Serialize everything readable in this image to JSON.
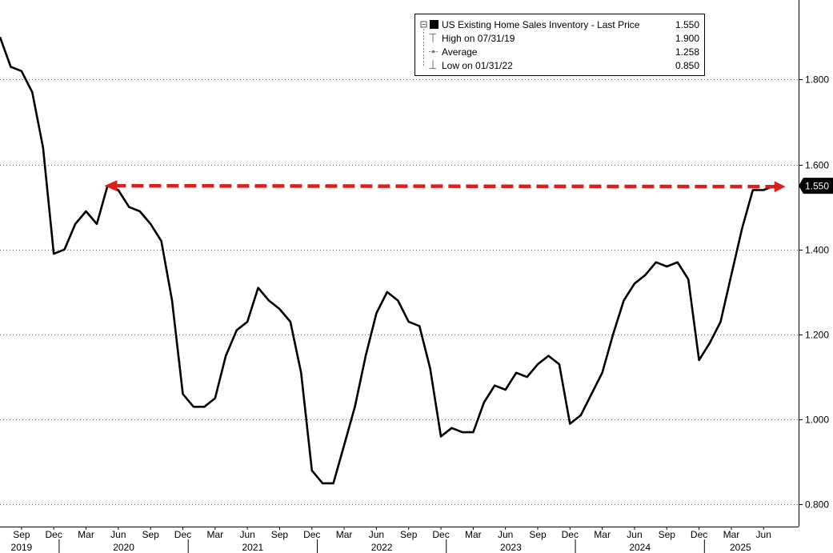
{
  "chart_data": {
    "type": "line",
    "series": [
      {
        "name": "US Existing Home Sales Inventory",
        "x": [
          "2019-07",
          "2019-08",
          "2019-09",
          "2019-10",
          "2019-11",
          "2019-12",
          "2020-01",
          "2020-02",
          "2020-03",
          "2020-04",
          "2020-05",
          "2020-06",
          "2020-07",
          "2020-08",
          "2020-09",
          "2020-10",
          "2020-11",
          "2020-12",
          "2021-01",
          "2021-02",
          "2021-03",
          "2021-04",
          "2021-05",
          "2021-06",
          "2021-07",
          "2021-08",
          "2021-09",
          "2021-10",
          "2021-11",
          "2021-12",
          "2022-01",
          "2022-02",
          "2022-03",
          "2022-04",
          "2022-05",
          "2022-06",
          "2022-07",
          "2022-08",
          "2022-09",
          "2022-10",
          "2022-11",
          "2022-12",
          "2023-01",
          "2023-02",
          "2023-03",
          "2023-04",
          "2023-05",
          "2023-06",
          "2023-07",
          "2023-08",
          "2023-09",
          "2023-10",
          "2023-11",
          "2023-12",
          "2024-01",
          "2024-02",
          "2024-03",
          "2024-04",
          "2024-05",
          "2024-06",
          "2024-07",
          "2024-08",
          "2024-09",
          "2024-10",
          "2024-11",
          "2024-12",
          "2025-01",
          "2025-02",
          "2025-03",
          "2025-04",
          "2025-05",
          "2025-06",
          "2025-07"
        ],
        "values": [
          1.9,
          1.83,
          1.82,
          1.77,
          1.64,
          1.39,
          1.4,
          1.46,
          1.49,
          1.46,
          1.55,
          1.54,
          1.5,
          1.49,
          1.46,
          1.42,
          1.28,
          1.06,
          1.03,
          1.03,
          1.05,
          1.15,
          1.21,
          1.23,
          1.31,
          1.28,
          1.26,
          1.23,
          1.11,
          0.88,
          0.85,
          0.85,
          0.94,
          1.03,
          1.15,
          1.25,
          1.3,
          1.28,
          1.23,
          1.22,
          1.12,
          0.96,
          0.98,
          0.97,
          0.97,
          1.04,
          1.08,
          1.07,
          1.11,
          1.1,
          1.13,
          1.15,
          1.13,
          0.99,
          1.01,
          1.06,
          1.11,
          1.2,
          1.28,
          1.32,
          1.34,
          1.37,
          1.36,
          1.37,
          1.33,
          1.14,
          1.18,
          1.23,
          1.34,
          1.45,
          1.54,
          1.54,
          1.55
        ]
      }
    ],
    "ylim": [
      0.76,
      1.96
    ],
    "y_ticks": [
      0.8,
      1.0,
      1.2,
      1.4,
      1.6,
      1.8
    ],
    "y_tick_labels": [
      "0.800",
      "1.000",
      "1.200",
      "1.400",
      "1.600",
      "1.800"
    ],
    "x_month_labels": [
      {
        "label": "Sep",
        "x": "2019-09"
      },
      {
        "label": "Dec",
        "x": "2019-12"
      },
      {
        "label": "Mar",
        "x": "2020-03"
      },
      {
        "label": "Jun",
        "x": "2020-06"
      },
      {
        "label": "Sep",
        "x": "2020-09"
      },
      {
        "label": "Dec",
        "x": "2020-12"
      },
      {
        "label": "Mar",
        "x": "2021-03"
      },
      {
        "label": "Jun",
        "x": "2021-06"
      },
      {
        "label": "Sep",
        "x": "2021-09"
      },
      {
        "label": "Dec",
        "x": "2021-12"
      },
      {
        "label": "Mar",
        "x": "2022-03"
      },
      {
        "label": "Jun",
        "x": "2022-06"
      },
      {
        "label": "Sep",
        "x": "2022-09"
      },
      {
        "label": "Dec",
        "x": "2022-12"
      },
      {
        "label": "Mar",
        "x": "2023-03"
      },
      {
        "label": "Jun",
        "x": "2023-06"
      },
      {
        "label": "Sep",
        "x": "2023-09"
      },
      {
        "label": "Dec",
        "x": "2023-12"
      },
      {
        "label": "Mar",
        "x": "2024-03"
      },
      {
        "label": "Jun",
        "x": "2024-06"
      },
      {
        "label": "Sep",
        "x": "2024-09"
      },
      {
        "label": "Dec",
        "x": "2024-12"
      },
      {
        "label": "Mar",
        "x": "2025-03"
      },
      {
        "label": "Jun",
        "x": "2025-06"
      }
    ],
    "x_year_labels": [
      "2019",
      "2020",
      "2021",
      "2022",
      "2023",
      "2024",
      "2025"
    ],
    "legend": {
      "placement": "top-right",
      "title": "US Existing Home Sales Inventory - Last Price",
      "title_value": "1.550",
      "rows": [
        {
          "label": "High on 07/31/19",
          "value": "1.900"
        },
        {
          "label": "Average",
          "value": "1.258"
        },
        {
          "label": "Low on 01/31/22",
          "value": "0.850"
        }
      ]
    },
    "last_price_label": "1.550",
    "annotation": {
      "type": "dashed-arrow",
      "from": {
        "x": "2020-05",
        "y": 1.55
      },
      "to": {
        "x": "2025-07",
        "y": 1.548
      }
    },
    "grid": "horizontal-dotted",
    "colors": {
      "line": "#000000",
      "arrow": "#d9201f",
      "background": "#ffffff",
      "last_price_bg": "#000000"
    }
  }
}
